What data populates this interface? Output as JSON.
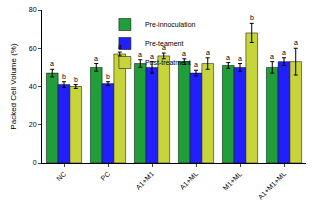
{
  "chart_data": {
    "type": "bar",
    "y_label": "Packed Cell Volume (%)",
    "categories": [
      "NC",
      "PC",
      "A1+M1",
      "A1+ML",
      "M1+ML",
      "A1+M1+ML"
    ],
    "series": [
      {
        "name": "Pre-innoculation",
        "color": "#1f9e3a",
        "values": [
          47,
          50,
          52,
          53,
          51,
          50
        ],
        "error": [
          2,
          2,
          2,
          1.5,
          1.5,
          3
        ],
        "annotations": [
          "a",
          "a",
          "a",
          "a",
          "a",
          "a"
        ]
      },
      {
        "name": "Pre-teament",
        "color": "#1f1fff",
        "values": [
          41,
          41.5,
          50,
          47,
          50,
          53
        ],
        "error": [
          1.5,
          1,
          3,
          1.5,
          2,
          2
        ],
        "annotations": [
          "b",
          "b",
          "a",
          "a",
          "a",
          "a"
        ]
      },
      {
        "name": "Post-treatment",
        "color": "#c8d43b",
        "values": [
          40,
          57,
          56,
          52,
          68,
          53
        ],
        "error": [
          1,
          1,
          1.5,
          3,
          5,
          7
        ],
        "annotations": [
          "b",
          "a",
          "a",
          "a",
          "b",
          "a"
        ]
      }
    ],
    "ylim": [
      0,
      80
    ],
    "yticks": [
      0,
      20,
      40,
      60,
      80
    ],
    "grid": false,
    "legend": "top"
  }
}
